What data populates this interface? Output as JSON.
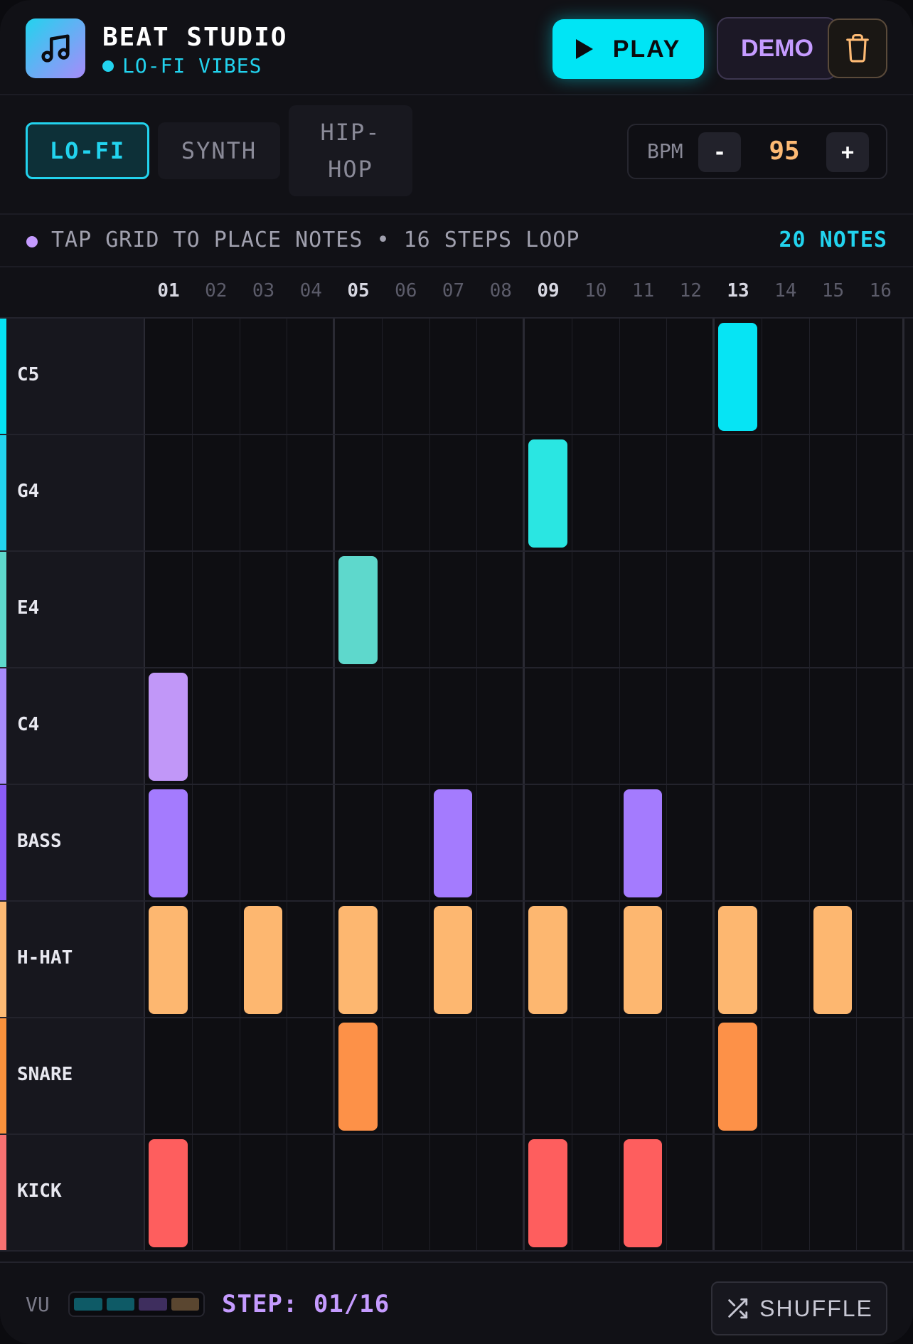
{
  "app": {
    "title": "BEAT STUDIO",
    "subtitle": "LO-FI VIBES",
    "logo_icon": "music-note-icon"
  },
  "toolbar": {
    "play_label": "PLAY",
    "demo_label": "DEMO",
    "trash_icon": "trash-icon"
  },
  "genres": {
    "lofi": "LO-FI",
    "synth": "SYNTH",
    "hiphop_line1": "HIP-",
    "hiphop_line2": "HOP",
    "selected": "LO-FI"
  },
  "bpm": {
    "label": "BPM",
    "minus": "-",
    "plus": "+",
    "value": "95"
  },
  "info": {
    "hint": "TAP GRID TO PLACE NOTES • 16 STEPS LOOP",
    "note_count": "20 NOTES"
  },
  "steps": [
    "01",
    "02",
    "03",
    "04",
    "05",
    "06",
    "07",
    "08",
    "09",
    "10",
    "11",
    "12",
    "13",
    "14",
    "15",
    "16"
  ],
  "tracks": [
    {
      "name": "C5",
      "color": "#06e4f4",
      "accent": "#06e4f4",
      "active": [
        13
      ]
    },
    {
      "name": "G4",
      "color": "#2ae6e2",
      "accent": "#22d3ee",
      "active": [
        9
      ]
    },
    {
      "name": "E4",
      "color": "#5ed8cc",
      "accent": "#5ed8cc",
      "active": [
        5
      ]
    },
    {
      "name": "C4",
      "color": "#c197f8",
      "accent": "#a78bfa",
      "active": [
        1
      ]
    },
    {
      "name": "BASS",
      "color": "#a47bfe",
      "accent": "#8b5cf6",
      "active": [
        1,
        7,
        11
      ]
    },
    {
      "name": "H-HAT",
      "color": "#fdb770",
      "accent": "#fdba74",
      "active": [
        1,
        3,
        5,
        7,
        9,
        11,
        13,
        15
      ]
    },
    {
      "name": "SNARE",
      "color": "#fd9148",
      "accent": "#fb923c",
      "active": [
        5,
        13
      ]
    },
    {
      "name": "KICK",
      "color": "#fe5e5e",
      "accent": "#f87171",
      "active": [
        1,
        9,
        11
      ]
    }
  ],
  "footer": {
    "vu_label": "VU",
    "vu_colors": [
      "#0e5a66",
      "#0e5a66",
      "#3e2e5e",
      "#5a4630"
    ],
    "step_indicator": "STEP: 01/16",
    "shuffle_label": "SHUFFLE",
    "shuffle_icon": "shuffle-icon"
  }
}
